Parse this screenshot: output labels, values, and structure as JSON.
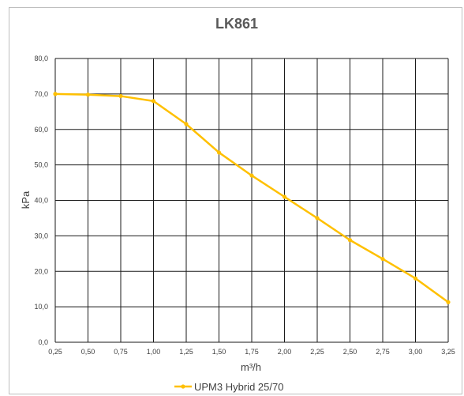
{
  "chart_data": {
    "type": "line",
    "title": "LK861",
    "xlabel": "m³/h",
    "ylabel": "kPa",
    "x": [
      "0,25",
      "0,50",
      "0,75",
      "1,00",
      "1,25",
      "1,50",
      "1,75",
      "2,00",
      "2,25",
      "2,50",
      "2,75",
      "3,00",
      "3,25"
    ],
    "x_values": [
      0.25,
      0.5,
      0.75,
      1.0,
      1.25,
      1.5,
      1.75,
      2.0,
      2.25,
      2.5,
      2.75,
      3.0,
      3.25
    ],
    "ylim": [
      0,
      80
    ],
    "yticks": [
      "0,0",
      "10,0",
      "20,0",
      "30,0",
      "40,0",
      "50,0",
      "60,0",
      "70,0",
      "80,0"
    ],
    "ytick_values": [
      0,
      10,
      20,
      30,
      40,
      50,
      60,
      70,
      80
    ],
    "series": [
      {
        "name": "UPM3 Hybrid 25/70",
        "color": "#ffc000",
        "values": [
          70.0,
          69.8,
          69.4,
          68.0,
          61.5,
          53.5,
          47.0,
          41.0,
          35.0,
          28.8,
          23.5,
          18.0,
          11.3
        ]
      }
    ],
    "grid": true,
    "legend": "bottom"
  }
}
